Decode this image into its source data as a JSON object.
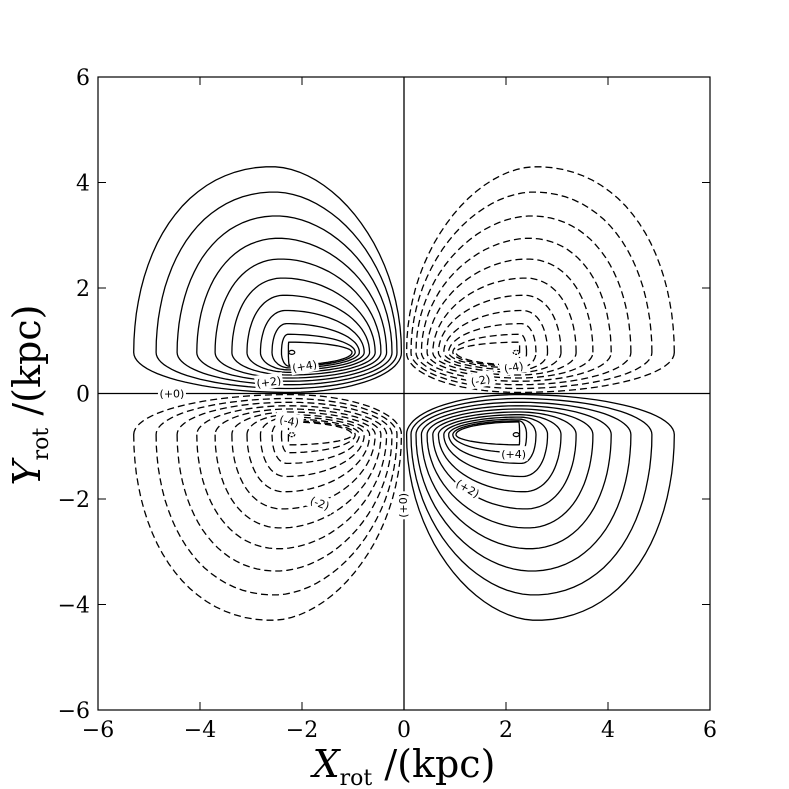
{
  "chart_data": {
    "type": "contour",
    "xlabel": {
      "symbol": "X",
      "subscript": "rot",
      "unit": " /(kpc)"
    },
    "ylabel": {
      "symbol": "Y",
      "subscript": "rot",
      "unit": " /(kpc)"
    },
    "xlim": [
      -6,
      6
    ],
    "ylim": [
      -6,
      6
    ],
    "xticks": [
      -6,
      -4,
      -2,
      0,
      2,
      4,
      6
    ],
    "yticks": [
      -6,
      -4,
      -2,
      0,
      2,
      4,
      6
    ],
    "tick_labels": [
      "−6",
      "−4",
      "−2",
      "0",
      "2",
      "4",
      "6"
    ],
    "grid": false,
    "lobes": [
      {
        "quadrant": "upper-left",
        "sign": "+",
        "center": [
          -2.2,
          0.78
        ],
        "outer_extent": {
          "x": [
            -5.3,
            0
          ],
          "y": [
            0,
            4.3
          ]
        }
      },
      {
        "quadrant": "upper-right",
        "sign": "-",
        "center": [
          2.2,
          0.78
        ],
        "outer_extent": {
          "x": [
            0,
            5.3
          ],
          "y": [
            0,
            4.3
          ]
        }
      },
      {
        "quadrant": "lower-left",
        "sign": "-",
        "center": [
          -2.2,
          -0.78
        ],
        "outer_extent": {
          "x": [
            -5.3,
            0
          ],
          "y": [
            -4.3,
            0
          ]
        }
      },
      {
        "quadrant": "lower-right",
        "sign": "+",
        "center": [
          2.2,
          -0.78
        ],
        "outer_extent": {
          "x": [
            0,
            5.3
          ],
          "y": [
            -4.3,
            0
          ]
        }
      }
    ],
    "contour_count_per_lobe": 11,
    "line_styles": {
      "positive": "solid",
      "negative": "dashed"
    },
    "contour_labels": [
      {
        "text": "(+4)",
        "x": -1.95,
        "y": 0.52,
        "rotation": -10
      },
      {
        "text": "(+2)",
        "x": -2.65,
        "y": 0.22,
        "rotation": -8
      },
      {
        "text": "(+0)",
        "x": -4.55,
        "y": 0.0,
        "rotation": 0
      },
      {
        "text": "(-4)",
        "x": -2.25,
        "y": -0.52,
        "rotation": 10
      },
      {
        "text": "(-2)",
        "x": -1.65,
        "y": -2.08,
        "rotation": 20
      },
      {
        "text": "(+0)",
        "x": -0.02,
        "y": -2.12,
        "rotation": -90
      },
      {
        "text": "(-4)",
        "x": 2.15,
        "y": 0.5,
        "rotation": -10
      },
      {
        "text": "(-2)",
        "x": 1.5,
        "y": 0.25,
        "rotation": -12
      },
      {
        "text": "(+4)",
        "x": 2.15,
        "y": -1.15,
        "rotation": 0
      },
      {
        "text": "(+2)",
        "x": 1.25,
        "y": -1.8,
        "rotation": 30
      }
    ]
  }
}
